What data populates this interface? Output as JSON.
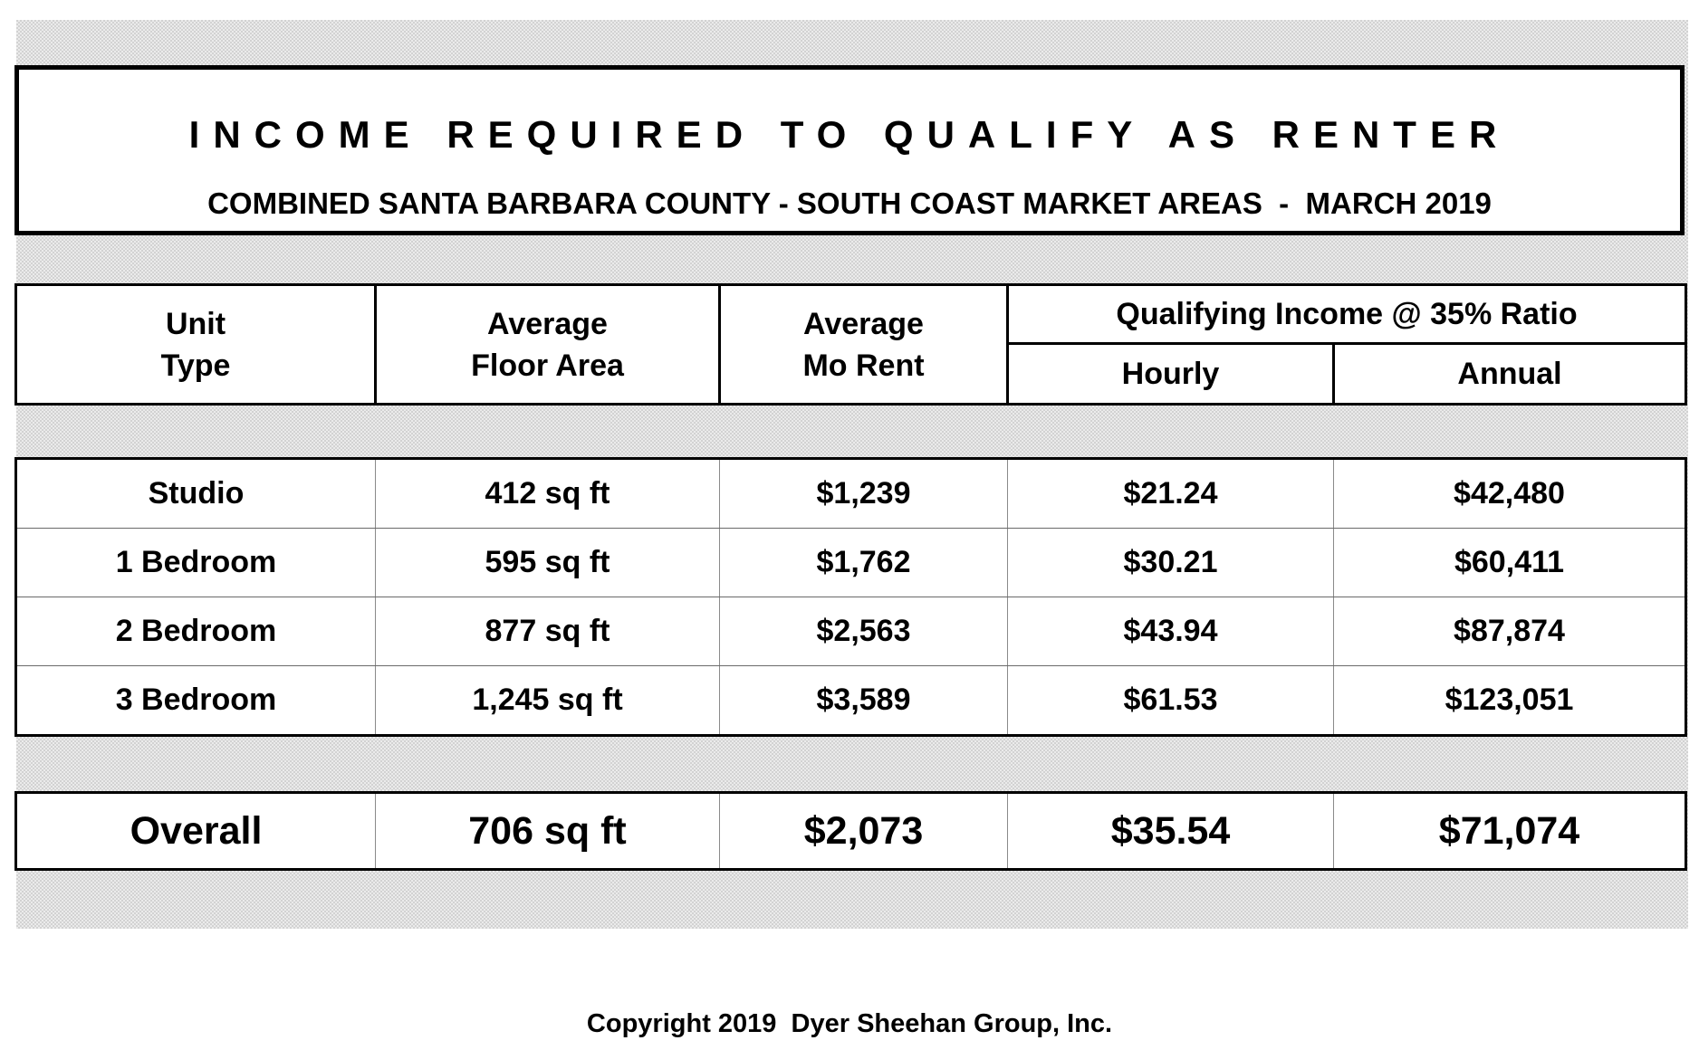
{
  "title": {
    "main": "INCOME REQUIRED TO QUALIFY AS RENTER",
    "subtitle": "COMBINED SANTA BARBARA COUNTY - SOUTH COAST MARKET AREAS  -  MARCH 2019"
  },
  "header": {
    "unit_type_line1": "Unit",
    "unit_type_line2": "Type",
    "floor_area_line1": "Average",
    "floor_area_line2": "Floor Area",
    "rent_line1": "Average",
    "rent_line2": "Mo Rent",
    "qualifying_group": "Qualifying Income @ 35% Ratio",
    "hourly": "Hourly",
    "annual": "Annual"
  },
  "rows": [
    {
      "unit": "Studio",
      "area": "412 sq ft",
      "rent": "$1,239",
      "hourly": "$21.24",
      "annual": "$42,480"
    },
    {
      "unit": "1 Bedroom",
      "area": "595 sq ft",
      "rent": "$1,762",
      "hourly": "$30.21",
      "annual": "$60,411"
    },
    {
      "unit": "2 Bedroom",
      "area": "877 sq ft",
      "rent": "$2,563",
      "hourly": "$43.94",
      "annual": "$87,874"
    },
    {
      "unit": "3 Bedroom",
      "area": "1,245 sq ft",
      "rent": "$3,589",
      "hourly": "$61.53",
      "annual": "$123,051"
    }
  ],
  "overall": {
    "unit": "Overall",
    "area": "706 sq ft",
    "rent": "$2,073",
    "hourly": "$35.54",
    "annual": "$71,074"
  },
  "copyright": "Copyright 2019  Dyer Sheehan Group, Inc."
}
